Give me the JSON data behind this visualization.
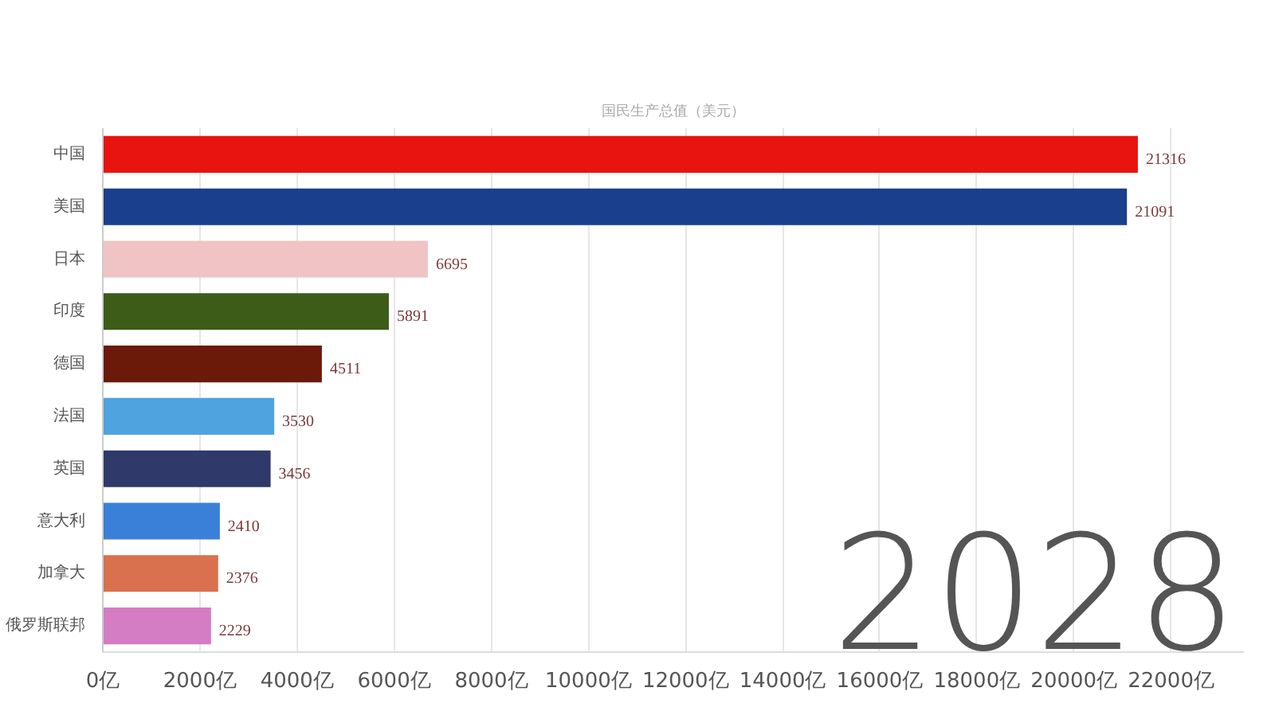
{
  "chart_data": {
    "type": "bar",
    "orientation": "horizontal",
    "title": "国民生产总值（美元）",
    "categories": [
      "中国",
      "美国",
      "日本",
      "印度",
      "德国",
      "法国",
      "英国",
      "意大利",
      "加拿大",
      "俄罗斯联邦"
    ],
    "values": [
      21316,
      21091,
      6695,
      5891,
      4511,
      3530,
      3456,
      2410,
      2376,
      2229
    ],
    "colors": [
      "#e8140f",
      "#1a3f8c",
      "#f0c4c4",
      "#3c5c18",
      "#6b1a0a",
      "#4fa3de",
      "#2f3a6a",
      "#3a80d9",
      "#d9704e",
      "#d47cc4"
    ],
    "xlim": [
      0,
      23500
    ],
    "xticks": [
      {
        "value": 0,
        "label": "0亿"
      },
      {
        "value": 2000,
        "label": "2000亿"
      },
      {
        "value": 4000,
        "label": "4000亿"
      },
      {
        "value": 6000,
        "label": "6000亿"
      },
      {
        "value": 8000,
        "label": "8000亿"
      },
      {
        "value": 10000,
        "label": "10000亿"
      },
      {
        "value": 12000,
        "label": "12000亿"
      },
      {
        "value": 14000,
        "label": "14000亿"
      },
      {
        "value": 16000,
        "label": "16000亿"
      },
      {
        "value": 18000,
        "label": "18000亿"
      },
      {
        "value": 20000,
        "label": "20000亿"
      },
      {
        "value": 22000,
        "label": "22000亿"
      }
    ],
    "grid": "x",
    "data_labels": true,
    "legend": false,
    "annotations": [
      "2028"
    ]
  }
}
